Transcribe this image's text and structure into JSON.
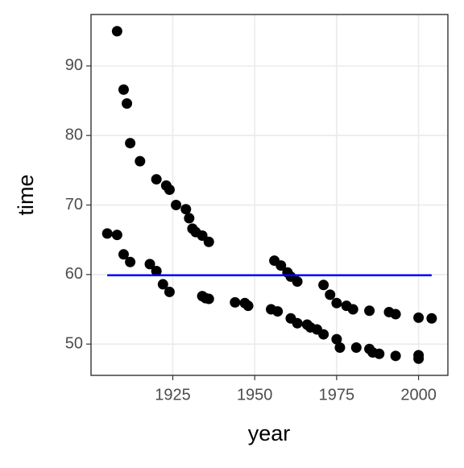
{
  "chart_data": {
    "type": "scatter",
    "x_label": "year",
    "y_label": "time",
    "x": [
      1905,
      1908,
      1908,
      1910,
      1910,
      1911,
      1912,
      1912,
      1915,
      1918,
      1920,
      1920,
      1922,
      1923,
      1924,
      1924,
      1926,
      1929,
      1930,
      1931,
      1932,
      1934,
      1934,
      1936,
      1935,
      1936,
      1944,
      1947,
      1948,
      1955,
      1956,
      1957,
      1958,
      1960,
      1961,
      1961,
      1963,
      1963,
      1966,
      1967,
      1969,
      1971,
      1971,
      1973,
      1975,
      1975,
      1976,
      1978,
      1980,
      1981,
      1985,
      1985,
      1986,
      1988,
      1991,
      1993,
      1993,
      2000,
      2000,
      2000,
      2004
    ],
    "values": [
      65.9,
      95.0,
      65.7,
      86.6,
      62.9,
      84.6,
      61.8,
      78.9,
      76.3,
      61.5,
      73.7,
      60.5,
      58.6,
      72.8,
      72.2,
      57.5,
      70.0,
      69.4,
      68.1,
      66.6,
      66.1,
      65.6,
      56.9,
      64.7,
      56.6,
      56.5,
      56.0,
      55.9,
      55.5,
      55.0,
      62.0,
      54.7,
      61.3,
      60.3,
      53.7,
      59.7,
      59.0,
      53.0,
      52.8,
      52.4,
      52.1,
      51.4,
      58.5,
      57.1,
      55.9,
      50.7,
      49.5,
      55.5,
      55.0,
      49.5,
      54.8,
      49.3,
      48.8,
      48.6,
      54.6,
      54.3,
      48.3,
      53.8,
      48.4,
      47.9,
      53.7
    ],
    "color": "#000000",
    "line": {
      "x": [
        1905,
        2004
      ],
      "values": [
        59.9,
        59.9
      ],
      "color": "#0000ff"
    },
    "xlim": [
      1900.05,
      2008.95
    ],
    "xticks": [
      1925,
      1950,
      1975,
      2000
    ],
    "ylim": [
      45.5,
      97.4
    ],
    "yticks": [
      50,
      60,
      70,
      80,
      90
    ],
    "grid": true
  }
}
